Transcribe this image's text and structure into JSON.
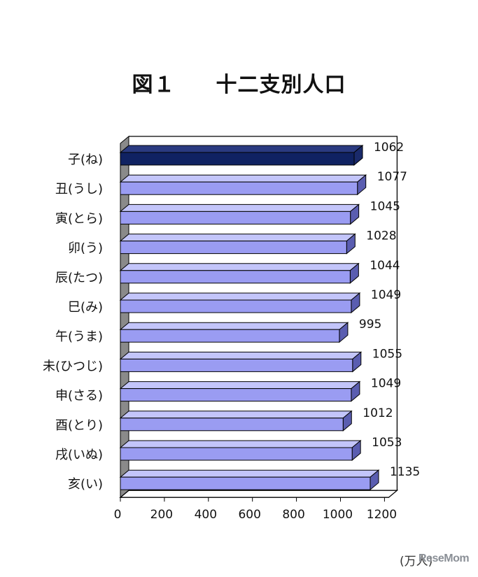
{
  "title": {
    "fig": "図１",
    "text": "十二支別人口"
  },
  "unit_label": "(万人)",
  "watermark": "ReseMom",
  "colors": {
    "highlight_bar": "#102262",
    "bar": "#9a9cf2",
    "bar_top": "#c3c5fa",
    "bar_end": "#5a5db0",
    "wall": "#8a8a8a"
  },
  "chart_data": {
    "type": "bar",
    "orientation": "horizontal",
    "categories": [
      "子(ね)",
      "丑(うし)",
      "寅(とら)",
      "卯(う)",
      "辰(たつ)",
      "巳(み)",
      "午(うま)",
      "未(ひつじ)",
      "申(さる)",
      "酉(とり)",
      "戌(いぬ)",
      "亥(い)"
    ],
    "values": [
      1062,
      1077,
      1045,
      1028,
      1044,
      1049,
      995,
      1055,
      1049,
      1012,
      1053,
      1135
    ],
    "data_labels": [
      "1062",
      "1077",
      "1045",
      "1028",
      "1044",
      "1049",
      "995",
      "1055",
      "1049",
      "1012",
      "1053",
      "1135"
    ],
    "x_ticks": [
      "0",
      "200",
      "400",
      "600",
      "800",
      "1000",
      "1200"
    ],
    "xlim": [
      0,
      1200
    ],
    "highlight_index": 0,
    "grid": false,
    "legend": "none"
  }
}
